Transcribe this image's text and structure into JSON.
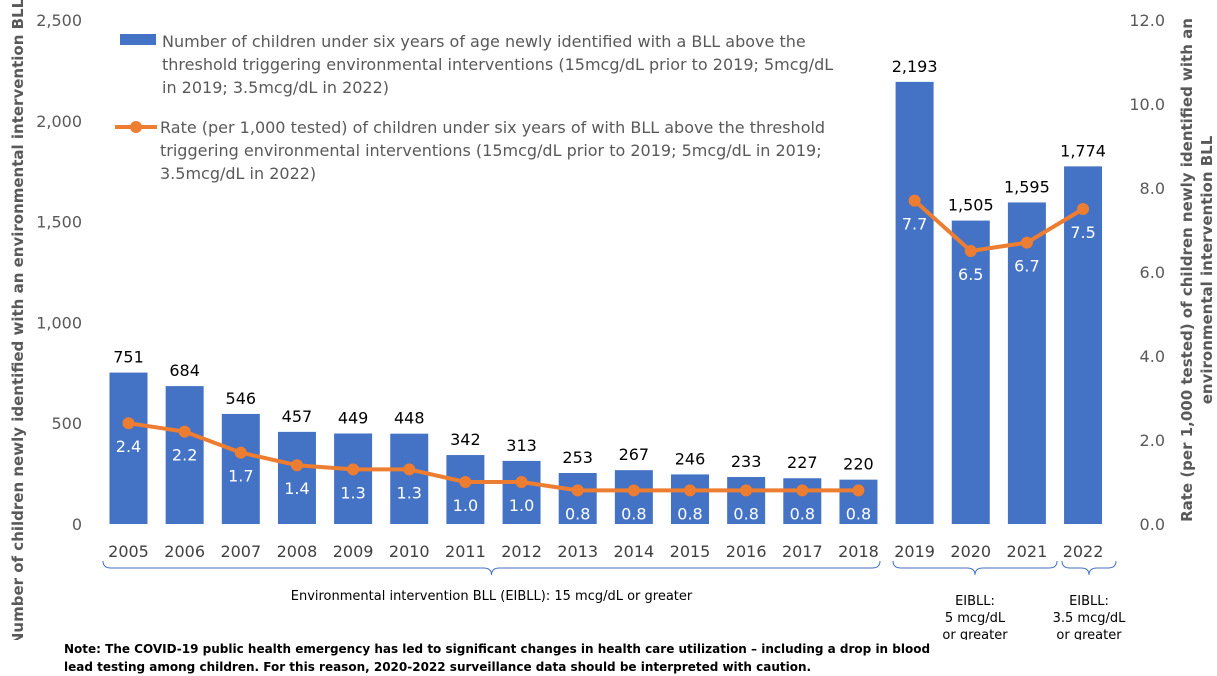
{
  "chart_data": {
    "type": "bar",
    "categories": [
      "2005",
      "2006",
      "2007",
      "2008",
      "2009",
      "2010",
      "2011",
      "2012",
      "2013",
      "2014",
      "2015",
      "2016",
      "2017",
      "2018",
      "2019",
      "2020",
      "2021",
      "2022"
    ],
    "series": [
      {
        "name": "Number of children under six years of age newly identified with a BLL above the threshold triggering environmental interventions (15mcg/dL prior to 2019; 5mcg/dL in 2019; 3.5mcg/dL in 2022)",
        "type": "bar",
        "axis": "left",
        "color": "#4472C4",
        "values": [
          751,
          684,
          546,
          457,
          449,
          448,
          342,
          313,
          253,
          267,
          246,
          233,
          227,
          220,
          2193,
          1505,
          1595,
          1774
        ],
        "labels": [
          "751",
          "684",
          "546",
          "457",
          "449",
          "448",
          "342",
          "313",
          "253",
          "267",
          "246",
          "233",
          "227",
          "220",
          "2,193",
          "1,505",
          "1,595",
          "1,774"
        ]
      },
      {
        "name": "Rate (per 1,000 tested) of children under six years of with BLL above the threshold triggering environmental interventions (15mcg/dL prior to 2019; 5mcg/dL in 2019; 3.5mcg/dL in 2022)",
        "type": "line",
        "axis": "right",
        "color": "#ED7D31",
        "values": [
          2.4,
          2.2,
          1.7,
          1.4,
          1.3,
          1.3,
          1.0,
          1.0,
          0.8,
          0.8,
          0.8,
          0.8,
          0.8,
          0.8,
          7.7,
          6.5,
          6.7,
          7.5
        ],
        "labels": [
          "2.4",
          "2.2",
          "1.7",
          "1.4",
          "1.3",
          "1.3",
          "1.0",
          "1.0",
          "0.8",
          "0.8",
          "0.8",
          "0.8",
          "0.8",
          "0.8",
          "7.7",
          "6.5",
          "6.7",
          "7.5"
        ]
      }
    ],
    "ylabel": "Number of children newly identified with an environmental intervention BLL",
    "y2label": "Rate (per 1,000 tested) of children newly identified with an environmental intervention BLL",
    "ylim": [
      0,
      2500
    ],
    "y2lim": [
      0,
      12
    ],
    "yticks": [
      "0",
      "500",
      "1,000",
      "1,500",
      "2,000",
      "2,500"
    ],
    "y2ticks": [
      "0.0",
      "2.0",
      "4.0",
      "6.0",
      "8.0",
      "10.0",
      "12.0"
    ],
    "legend_position": "top-left",
    "grid": false,
    "groups": [
      {
        "label": "Environmental intervention BLL (EIBLL): 15 mcg/dL or greater",
        "from": "2005",
        "to": "2018"
      },
      {
        "label": "EIBLL:\n5 mcg/dL\nor greater",
        "from": "2019",
        "to": "2021"
      },
      {
        "label": "EIBLL:\n3.5 mcg/dL\nor greater",
        "from": "2022",
        "to": "2022"
      }
    ]
  },
  "legend": {
    "bar_lines": [
      "Number of children under six years of age newly identified with a BLL above the",
      "threshold triggering environmental interventions (15mcg/dL prior to 2019; 5mcg/dL",
      "in 2019; 3.5mcg/dL in 2022)"
    ],
    "line_lines": [
      "Rate (per 1,000 tested) of children under six years of with BLL above the threshold",
      "triggering environmental interventions (15mcg/dL prior to 2019; 5mcg/dL in 2019;",
      "3.5mcg/dL in 2022)"
    ]
  },
  "note": {
    "line1": "Note: The COVID-19 public health emergency has led to significant changes in health care utilization – including a drop in blood",
    "line2": "lead testing among children. For this reason, 2020-2022 surveillance data should be interpreted with caution."
  }
}
